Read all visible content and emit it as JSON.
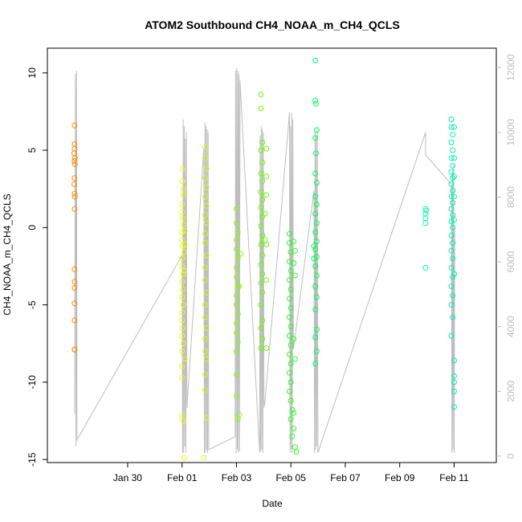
{
  "chart_data": {
    "type": "scatter",
    "title": "ATOM2 Southbound CH4_NOAA_m_CH4_QCLS",
    "xlabel": "Date",
    "ylabel": "CH4_NOAA_m_CH4_QCLS",
    "x_unit": "days since 2017-01-29",
    "xlim": [
      -1.95,
      14.55
    ],
    "ylim": [
      -15.2,
      11.6
    ],
    "y2lim": [
      -200,
      12600
    ],
    "x_ticks": [
      {
        "x": 1,
        "label": "Jan 30"
      },
      {
        "x": 3,
        "label": "Feb 01"
      },
      {
        "x": 5,
        "label": "Feb 03"
      },
      {
        "x": 7,
        "label": "Feb 05"
      },
      {
        "x": 9,
        "label": "Feb 07"
      },
      {
        "x": 11,
        "label": "Feb 09"
      },
      {
        "x": 13,
        "label": "Feb 11"
      }
    ],
    "y_ticks": [
      {
        "y": -15,
        "label": "-15"
      },
      {
        "y": -10,
        "label": "-10"
      },
      {
        "y": -5,
        "label": "-5"
      },
      {
        "y": 0,
        "label": "0"
      },
      {
        "y": 5,
        "label": "5"
      },
      {
        "y": 10,
        "label": "10"
      }
    ],
    "y2_ticks": [
      {
        "y": 0,
        "label": "0"
      },
      {
        "y": 2000,
        "label": "2000"
      },
      {
        "y": 4000,
        "label": "4000"
      },
      {
        "y": 6000,
        "label": "6000"
      },
      {
        "y": 8000,
        "label": "8000"
      },
      {
        "y": 10000,
        "label": "10000"
      },
      {
        "y": 12000,
        "label": "12000"
      }
    ],
    "altitude_line_color": "#bebebe",
    "series": [
      {
        "color": "#ff8c00",
        "points": [
          [
            -0.95,
            6.6
          ],
          [
            -0.95,
            5.4
          ],
          [
            -0.95,
            5.1
          ],
          [
            -0.96,
            4.8
          ],
          [
            -0.94,
            4.5
          ],
          [
            -0.95,
            4.3
          ],
          [
            -0.94,
            4.1
          ],
          [
            -0.95,
            3.2
          ],
          [
            -0.96,
            2.8
          ],
          [
            -0.95,
            2.2
          ],
          [
            -0.94,
            2.0
          ],
          [
            -0.95,
            1.2
          ],
          [
            -0.95,
            -2.7
          ],
          [
            -0.95,
            -3.5
          ],
          [
            -0.95,
            -3.9
          ],
          [
            -0.95,
            -4.9
          ],
          [
            -0.95,
            -6.0
          ],
          [
            -0.95,
            -7.9
          ],
          [
            -0.95,
            -7.9
          ]
        ]
      },
      {
        "color": "#e6ff00",
        "points": [
          [
            3.0,
            3.8
          ],
          [
            3.0,
            3.0
          ],
          [
            3.05,
            2.5
          ],
          [
            3.05,
            2.1
          ],
          [
            3.0,
            1.5
          ],
          [
            3.0,
            1.0
          ],
          [
            3.02,
            0.6
          ],
          [
            3.05,
            0.2
          ],
          [
            3.0,
            -0.3
          ],
          [
            3.0,
            -0.8
          ],
          [
            3.02,
            -1.2
          ],
          [
            3.08,
            -1.6
          ],
          [
            3.0,
            -2.0
          ],
          [
            3.0,
            -2.5
          ],
          [
            3.05,
            -3.0
          ],
          [
            3.0,
            -3.5
          ],
          [
            3.02,
            -4.0
          ],
          [
            3.0,
            -4.5
          ],
          [
            3.05,
            -5.0
          ],
          [
            3.0,
            -5.5
          ],
          [
            3.0,
            -6.0
          ],
          [
            3.02,
            -6.5
          ],
          [
            3.0,
            -7.0
          ],
          [
            3.05,
            -7.5
          ],
          [
            3.0,
            -8.0
          ],
          [
            3.1,
            -8.5
          ],
          [
            3.0,
            -9.0
          ],
          [
            3.0,
            -9.7
          ],
          [
            3.0,
            -12.2
          ],
          [
            3.05,
            -12.5
          ],
          [
            3.08,
            -14.9
          ],
          [
            3.1,
            -0.2
          ],
          [
            3.1,
            -1.1
          ],
          [
            3.08,
            -2.8
          ]
        ]
      },
      {
        "color": "#d4ff00",
        "points": [
          [
            3.85,
            5.2
          ],
          [
            3.85,
            4.5
          ],
          [
            3.9,
            3.8
          ],
          [
            3.85,
            3.2
          ],
          [
            3.9,
            2.6
          ],
          [
            3.85,
            2.0
          ],
          [
            3.9,
            1.4
          ],
          [
            3.85,
            0.8
          ],
          [
            3.9,
            0.3
          ],
          [
            3.85,
            -0.4
          ],
          [
            3.85,
            -1.0
          ],
          [
            3.9,
            -1.8
          ],
          [
            3.85,
            -2.6
          ],
          [
            3.85,
            -3.4
          ],
          [
            3.9,
            -4.2
          ],
          [
            3.85,
            -5.0
          ],
          [
            3.85,
            -5.8
          ],
          [
            3.9,
            -6.5
          ],
          [
            3.85,
            -7.2
          ],
          [
            3.85,
            -8.0
          ],
          [
            3.9,
            -8.5
          ],
          [
            3.85,
            -9.5
          ],
          [
            3.85,
            -10.5
          ],
          [
            3.9,
            -12.3
          ],
          [
            3.8,
            -14.9
          ]
        ]
      },
      {
        "color": "#88ff00",
        "points": [
          [
            5.0,
            1.2
          ],
          [
            5.0,
            0.3
          ],
          [
            5.05,
            -0.3
          ],
          [
            5.0,
            -0.8
          ],
          [
            5.0,
            -1.4
          ],
          [
            5.05,
            -2.0
          ],
          [
            5.0,
            -2.6
          ],
          [
            5.0,
            -3.2
          ],
          [
            5.05,
            -3.8
          ],
          [
            5.0,
            -4.4
          ],
          [
            5.0,
            -5.0
          ],
          [
            5.05,
            -5.6
          ],
          [
            5.0,
            -6.2
          ],
          [
            5.0,
            -6.8
          ],
          [
            5.05,
            -7.4
          ],
          [
            5.0,
            -8.0
          ],
          [
            5.0,
            -9.5
          ],
          [
            5.0,
            -10.9
          ],
          [
            5.05,
            -12.4
          ],
          [
            5.1,
            -12.1
          ],
          [
            5.15,
            -1.7
          ],
          [
            5.1,
            -3.8
          ]
        ]
      },
      {
        "color": "#66ff00",
        "points": [
          [
            5.9,
            8.6
          ],
          [
            5.9,
            7.7
          ],
          [
            5.95,
            5.5
          ],
          [
            5.9,
            5.0
          ],
          [
            5.95,
            4.2
          ],
          [
            5.9,
            3.5
          ],
          [
            5.95,
            3.0
          ],
          [
            5.9,
            2.3
          ],
          [
            5.95,
            1.8
          ],
          [
            5.9,
            1.3
          ],
          [
            5.95,
            0.7
          ],
          [
            5.9,
            0.1
          ],
          [
            5.95,
            -0.5
          ],
          [
            5.9,
            -1.1
          ],
          [
            5.95,
            -1.8
          ],
          [
            5.9,
            -2.4
          ],
          [
            5.95,
            -3.0
          ],
          [
            5.9,
            -3.6
          ],
          [
            5.95,
            -4.2
          ],
          [
            5.9,
            -5.0
          ],
          [
            5.95,
            -6.0
          ],
          [
            5.9,
            -6.5
          ],
          [
            5.95,
            -7.2
          ],
          [
            5.9,
            -7.8
          ],
          [
            6.1,
            5.1
          ],
          [
            6.1,
            3.3
          ],
          [
            6.1,
            2.1
          ],
          [
            6.1,
            -1.1
          ],
          [
            6.1,
            -3.4
          ],
          [
            6.1,
            -7.8
          ],
          [
            6.05,
            0.9
          ],
          [
            6.05,
            -0.8
          ]
        ]
      },
      {
        "color": "#22ff22",
        "points": [
          [
            6.95,
            -0.4
          ],
          [
            6.95,
            -1.0
          ],
          [
            7.0,
            -1.6
          ],
          [
            6.95,
            -2.2
          ],
          [
            7.0,
            -2.8
          ],
          [
            6.95,
            -3.4
          ],
          [
            7.0,
            -4.0
          ],
          [
            6.95,
            -4.6
          ],
          [
            7.0,
            -5.2
          ],
          [
            6.95,
            -5.8
          ],
          [
            7.0,
            -6.4
          ],
          [
            6.95,
            -7.0
          ],
          [
            7.0,
            -7.6
          ],
          [
            6.95,
            -8.2
          ],
          [
            7.0,
            -8.8
          ],
          [
            6.95,
            -9.4
          ],
          [
            7.0,
            -10.0
          ],
          [
            6.95,
            -10.6
          ],
          [
            7.0,
            -11.2
          ],
          [
            7.05,
            -11.8
          ],
          [
            7.0,
            -12.4
          ],
          [
            7.1,
            -13.0
          ],
          [
            7.15,
            -14.2
          ],
          [
            7.2,
            -14.5
          ],
          [
            7.1,
            -0.9
          ],
          [
            7.15,
            -1.5
          ],
          [
            7.1,
            -2.3
          ],
          [
            7.15,
            -3.1
          ],
          [
            7.1,
            -7.2
          ],
          [
            7.15,
            -8.5
          ],
          [
            7.05,
            -13.5
          ],
          [
            7.1,
            -12.0
          ]
        ]
      },
      {
        "color": "#00ff55",
        "points": [
          [
            7.9,
            10.8
          ],
          [
            7.9,
            8.2
          ],
          [
            7.92,
            8.0
          ],
          [
            7.95,
            6.3
          ],
          [
            7.9,
            5.8
          ],
          [
            7.92,
            4.8
          ],
          [
            7.9,
            3.5
          ],
          [
            7.95,
            2.9
          ],
          [
            7.9,
            2.0
          ],
          [
            7.95,
            1.5
          ],
          [
            7.9,
            0.9
          ],
          [
            7.95,
            0.3
          ],
          [
            7.9,
            -0.3
          ],
          [
            7.95,
            -0.9
          ],
          [
            7.9,
            -1.4
          ],
          [
            7.95,
            -1.9
          ],
          [
            7.9,
            -2.5
          ],
          [
            7.95,
            -3.1
          ],
          [
            7.9,
            -3.8
          ],
          [
            7.95,
            -4.5
          ],
          [
            7.9,
            -5.3
          ],
          [
            7.95,
            -6.6
          ],
          [
            7.9,
            -7.1
          ],
          [
            7.95,
            -8.0
          ],
          [
            7.9,
            -8.8
          ],
          [
            7.85,
            -1.2
          ],
          [
            7.85,
            -2.0
          ]
        ]
      },
      {
        "color": "#00ffaa",
        "points": [
          [
            11.95,
            1.2
          ],
          [
            11.95,
            0.9
          ],
          [
            11.95,
            0.6
          ],
          [
            11.95,
            0.3
          ],
          [
            11.95,
            -2.6
          ],
          [
            11.98,
            1.1
          ]
        ]
      },
      {
        "color": "#00f0b4",
        "points": [
          [
            12.9,
            7.0
          ],
          [
            12.9,
            6.5
          ],
          [
            12.95,
            6.0
          ],
          [
            12.9,
            5.5
          ],
          [
            12.95,
            5.0
          ],
          [
            12.9,
            4.5
          ],
          [
            12.95,
            4.0
          ],
          [
            12.9,
            3.6
          ],
          [
            12.95,
            3.2
          ],
          [
            12.9,
            2.8
          ],
          [
            12.95,
            2.4
          ],
          [
            12.9,
            2.0
          ],
          [
            12.95,
            1.6
          ],
          [
            12.9,
            1.2
          ],
          [
            12.95,
            0.8
          ],
          [
            12.9,
            0.4
          ],
          [
            12.95,
            0.0
          ],
          [
            12.9,
            -0.5
          ],
          [
            12.95,
            -1.0
          ],
          [
            12.9,
            -1.5
          ],
          [
            12.95,
            -2.0
          ],
          [
            12.9,
            -2.6
          ],
          [
            12.95,
            -3.2
          ],
          [
            12.9,
            -3.8
          ],
          [
            12.95,
            -4.4
          ],
          [
            12.9,
            -5.0
          ],
          [
            12.95,
            -5.8
          ],
          [
            12.9,
            -7.0
          ],
          [
            13.0,
            -8.6
          ],
          [
            13.0,
            -9.6
          ],
          [
            13.0,
            -10.0
          ],
          [
            13.0,
            -10.6
          ],
          [
            13.0,
            -11.6
          ],
          [
            13.0,
            6.5
          ],
          [
            13.0,
            4.5
          ],
          [
            13.0,
            3.3
          ],
          [
            13.0,
            2.0
          ],
          [
            13.0,
            0.5
          ],
          [
            13.0,
            -3.0
          ]
        ]
      }
    ],
    "altitude_path": [
      [
        -0.95,
        1300
      ],
      [
        -0.92,
        11800
      ],
      [
        -0.9,
        300
      ],
      [
        -0.88,
        11900
      ],
      [
        -0.86,
        500
      ],
      [
        3.0,
        6200
      ],
      [
        3.02,
        100
      ],
      [
        3.04,
        10400
      ],
      [
        3.06,
        100
      ],
      [
        3.08,
        10200
      ],
      [
        3.1,
        300
      ],
      [
        3.12,
        9800
      ],
      [
        3.14,
        100
      ],
      [
        3.16,
        10000
      ],
      [
        3.18,
        1500
      ],
      [
        3.8,
        9500
      ],
      [
        3.82,
        100
      ],
      [
        3.84,
        10300
      ],
      [
        3.86,
        100
      ],
      [
        3.88,
        10200
      ],
      [
        3.9,
        200
      ],
      [
        3.92,
        10100
      ],
      [
        3.94,
        100
      ],
      [
        3.96,
        10000
      ],
      [
        3.98,
        200
      ],
      [
        4.95,
        600
      ],
      [
        4.97,
        11900
      ],
      [
        4.99,
        100
      ],
      [
        5.01,
        12000
      ],
      [
        5.03,
        200
      ],
      [
        5.05,
        11900
      ],
      [
        5.07,
        100
      ],
      [
        5.09,
        11800
      ],
      [
        5.11,
        150
      ],
      [
        5.13,
        11600
      ],
      [
        5.85,
        100
      ],
      [
        5.87,
        9900
      ],
      [
        5.89,
        150
      ],
      [
        5.91,
        10200
      ],
      [
        5.93,
        200
      ],
      [
        5.95,
        10100
      ],
      [
        5.97,
        100
      ],
      [
        5.99,
        10000
      ],
      [
        6.01,
        1500
      ],
      [
        6.05,
        1700
      ],
      [
        6.95,
        10600
      ],
      [
        6.97,
        100
      ],
      [
        6.99,
        10200
      ],
      [
        7.01,
        200
      ],
      [
        7.03,
        10600
      ],
      [
        7.05,
        100
      ],
      [
        7.07,
        10400
      ],
      [
        7.09,
        3300
      ],
      [
        7.85,
        8200
      ],
      [
        7.87,
        100
      ],
      [
        7.89,
        10000
      ],
      [
        7.91,
        200
      ],
      [
        7.93,
        9900
      ],
      [
        7.95,
        300
      ],
      [
        7.97,
        10100
      ],
      [
        7.99,
        100
      ],
      [
        11.95,
        10000
      ],
      [
        11.95,
        9300
      ],
      [
        12.9,
        8400
      ],
      [
        12.92,
        100
      ],
      [
        12.94,
        8800
      ],
      [
        12.96,
        200
      ],
      [
        12.98,
        9000
      ],
      [
        13.0,
        100
      ],
      [
        13.02,
        7000
      ],
      [
        13.05,
        7000
      ]
    ]
  }
}
